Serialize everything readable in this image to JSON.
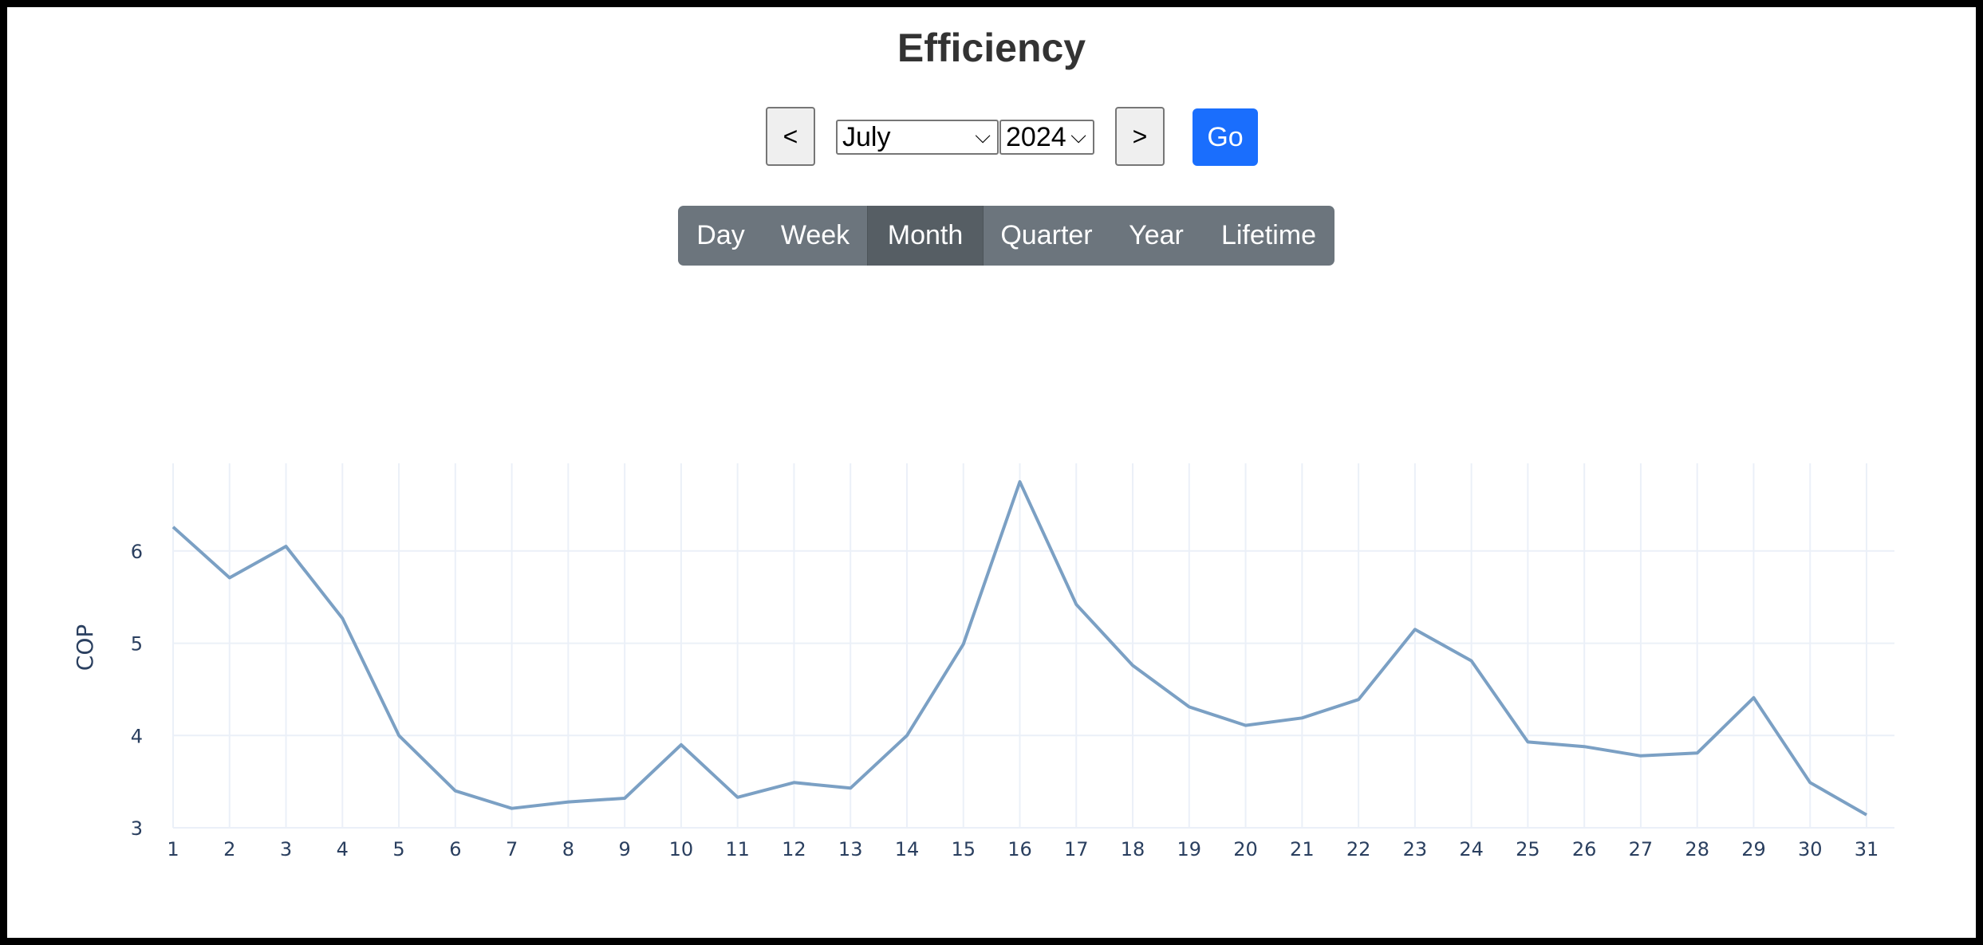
{
  "header": {
    "title": "Efficiency"
  },
  "controls": {
    "prev_label": "<",
    "next_label": ">",
    "month_select": {
      "selected": "July"
    },
    "year_select": {
      "selected": "2024"
    },
    "go_label": "Go"
  },
  "range_tabs": [
    {
      "label": "Day",
      "active": false
    },
    {
      "label": "Week",
      "active": false
    },
    {
      "label": "Month",
      "active": true
    },
    {
      "label": "Quarter",
      "active": false
    },
    {
      "label": "Year",
      "active": false
    },
    {
      "label": "Lifetime",
      "active": false
    }
  ],
  "icons": {
    "select_arrow": "chevron-down-icon"
  },
  "colors": {
    "accent": "#1a6efd",
    "line": "#7ba0c4",
    "tabs": "#6c757d",
    "tab_active": "#565e64"
  },
  "chart_data": {
    "type": "line",
    "ylabel": "COP",
    "xlabel": "",
    "x": [
      1,
      2,
      3,
      4,
      5,
      6,
      7,
      8,
      9,
      10,
      11,
      12,
      13,
      14,
      15,
      16,
      17,
      18,
      19,
      20,
      21,
      22,
      23,
      24,
      25,
      26,
      27,
      28,
      29,
      30,
      31
    ],
    "series": [
      {
        "values": [
          6.26,
          5.71,
          6.05,
          5.27,
          4.0,
          3.4,
          3.21,
          3.28,
          3.32,
          3.9,
          3.33,
          3.49,
          3.43,
          4.0,
          4.99,
          6.75,
          5.42,
          4.76,
          4.31,
          4.11,
          4.19,
          4.39,
          5.15,
          4.81,
          3.93,
          3.88,
          3.78,
          3.81,
          4.41,
          3.49,
          3.14
        ]
      }
    ],
    "xlim": [
      1,
      31
    ],
    "ylim": [
      3,
      6.95
    ],
    "yticks": [
      3,
      4,
      5,
      6
    ],
    "xticks": [
      1,
      2,
      3,
      4,
      5,
      6,
      7,
      8,
      9,
      10,
      11,
      12,
      13,
      14,
      15,
      16,
      17,
      18,
      19,
      20,
      21,
      22,
      23,
      24,
      25,
      26,
      27,
      28,
      29,
      30,
      31
    ],
    "grid": true,
    "legend": false
  }
}
